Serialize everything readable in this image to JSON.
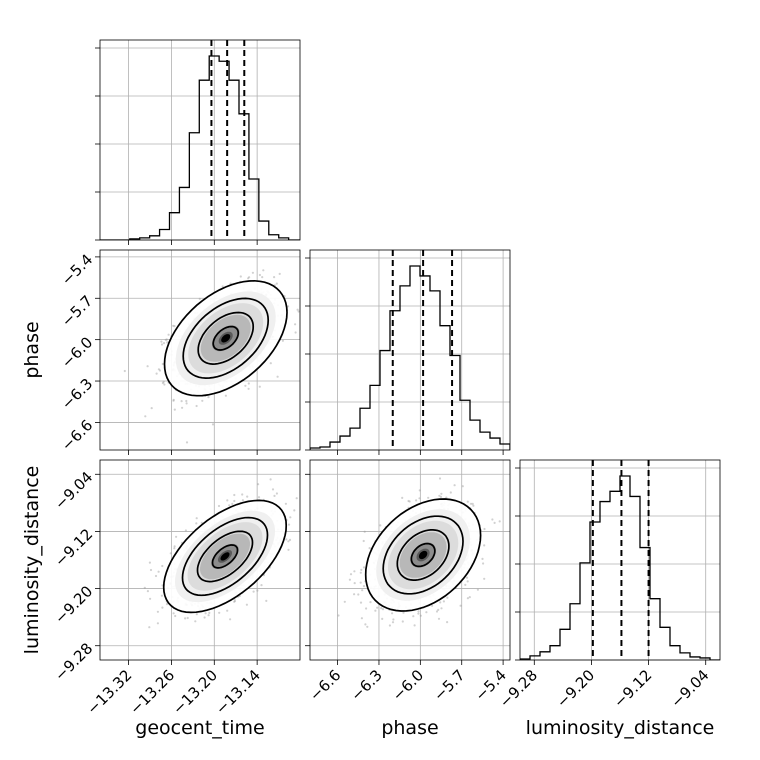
{
  "chart_data": {
    "type": "corner",
    "parameters": [
      {
        "name": "geocent_time",
        "label": "geocent_time",
        "range": [
          -13.36,
          -13.08
        ],
        "ticks": [
          -13.32,
          -13.26,
          -13.2,
          -13.14
        ],
        "tick_labels": [
          "−13.32",
          "−13.26",
          "−13.20",
          "−13.14"
        ],
        "quantiles": [
          -13.204,
          -13.182,
          -13.158
        ],
        "hist_bin_edges": [
          -13.36,
          -13.3461,
          -13.3322,
          -13.3183,
          -13.3044,
          -13.2905,
          -13.2766,
          -13.2627,
          -13.2488,
          -13.2349,
          -13.221,
          -13.2071,
          -13.1932,
          -13.1793,
          -13.1654,
          -13.1515,
          -13.1376,
          -13.1237,
          -13.1098,
          -13.0959,
          -13.08
        ],
        "hist_counts": [
          0,
          0,
          0,
          1,
          2,
          4,
          10,
          26,
          50,
          102,
          152,
          175,
          170,
          152,
          120,
          58,
          18,
          5,
          2,
          0
        ]
      },
      {
        "name": "phase",
        "label": "phase",
        "range": [
          -6.8,
          -5.35
        ],
        "ticks": [
          -6.6,
          -6.3,
          -6.0,
          -5.7,
          -5.4
        ],
        "tick_labels": [
          "−6.6",
          "−6.3",
          "−6.0",
          "−5.7",
          "−5.4"
        ],
        "quantiles": [
          -6.2,
          -5.98,
          -5.77
        ],
        "hist_bin_edges": [
          -6.8,
          -6.7275,
          -6.655,
          -6.5825,
          -6.51,
          -6.4375,
          -6.365,
          -6.2925,
          -6.22,
          -6.1475,
          -6.075,
          -6.0025,
          -5.93,
          -5.8575,
          -5.785,
          -5.7125,
          -5.64,
          -5.5675,
          -5.495,
          -5.4225,
          -5.35
        ],
        "hist_counts": [
          2,
          3,
          8,
          14,
          22,
          42,
          65,
          100,
          140,
          165,
          185,
          175,
          160,
          125,
          95,
          50,
          30,
          18,
          12,
          6
        ]
      },
      {
        "name": "luminosity_distance",
        "label": "luminosity_distance",
        "range": [
          -9.3,
          -9.02
        ],
        "ticks": [
          -9.28,
          -9.2,
          -9.12,
          -9.04
        ],
        "tick_labels": [
          "−9.28",
          "−9.20",
          "−9.12",
          "−9.04"
        ],
        "quantiles": [
          -9.198,
          -9.158,
          -9.12
        ],
        "hist_bin_edges": [
          -9.3,
          -9.286,
          -9.272,
          -9.258,
          -9.244,
          -9.23,
          -9.216,
          -9.202,
          -9.188,
          -9.174,
          -9.16,
          -9.146,
          -9.132,
          -9.118,
          -9.104,
          -9.09,
          -9.076,
          -9.062,
          -9.048,
          -9.034,
          -9.02
        ],
        "hist_counts": [
          1,
          4,
          8,
          14,
          30,
          55,
          95,
          135,
          155,
          165,
          180,
          160,
          110,
          60,
          32,
          14,
          7,
          3,
          2,
          0
        ]
      }
    ],
    "pairs": [
      {
        "x": "geocent_time",
        "y": "phase",
        "mean": [
          -13.184,
          -5.99
        ],
        "std": [
          0.035,
          0.17
        ],
        "corr": 0.45
      },
      {
        "x": "geocent_time",
        "y": "luminosity_distance",
        "mean": [
          -13.185,
          -9.155
        ],
        "std": [
          0.035,
          0.032
        ],
        "corr": 0.55
      },
      {
        "x": "phase",
        "y": "luminosity_distance",
        "mean": [
          -5.98,
          -9.153
        ],
        "std": [
          0.17,
          0.032
        ],
        "corr": 0.35
      }
    ],
    "grid": true,
    "colors": {
      "hist": "#000000",
      "scatter": "#9a9a9a",
      "contour": "#000000"
    }
  }
}
